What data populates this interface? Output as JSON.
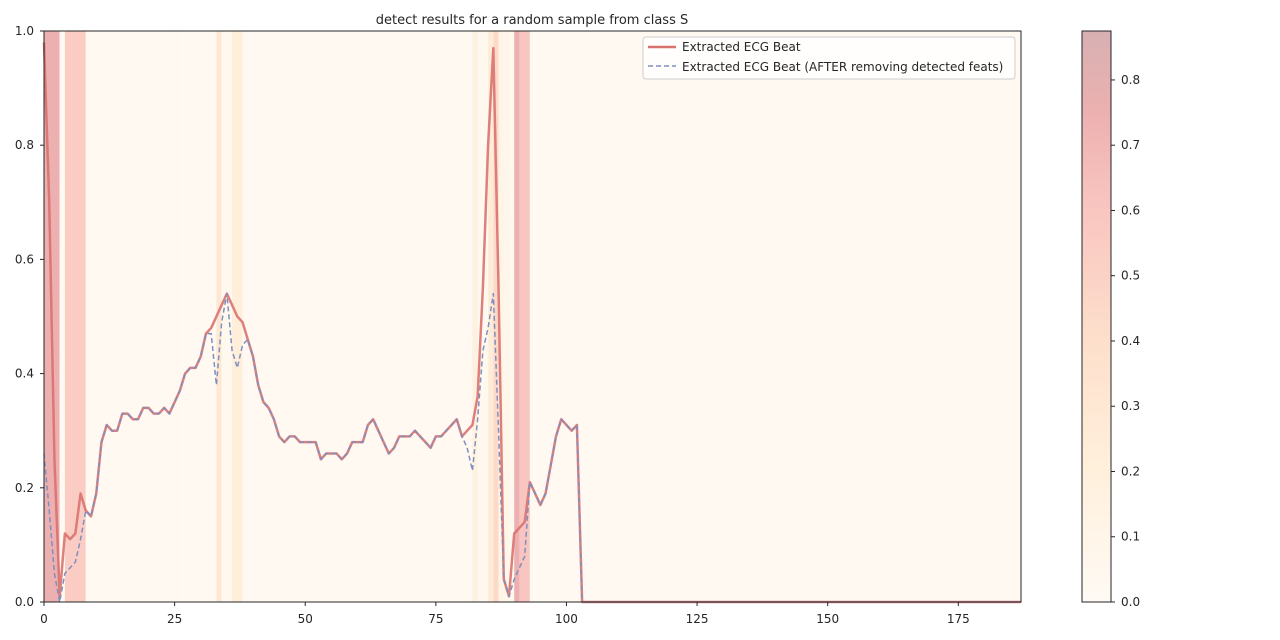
{
  "chart_data": {
    "type": "line",
    "title": "detect results for a random sample from class S",
    "xlabel": "",
    "ylabel": "",
    "xlim": [
      0,
      187
    ],
    "ylim": [
      0,
      1
    ],
    "xticks": [
      0,
      25,
      50,
      75,
      100,
      125,
      150,
      175
    ],
    "yticks": [
      0.0,
      0.2,
      0.4,
      0.6,
      0.8,
      1.0
    ],
    "grid": false,
    "legend_position": "top-right",
    "colors": {
      "beat": "#d9726f",
      "after": "#7f8fbf",
      "frame": "#262626"
    },
    "series": [
      {
        "name": "Extracted ECG Beat",
        "x": [
          0,
          1,
          2,
          3,
          4,
          5,
          6,
          7,
          8,
          9,
          10,
          11,
          12,
          13,
          14,
          15,
          16,
          17,
          18,
          19,
          20,
          21,
          22,
          23,
          24,
          25,
          26,
          27,
          28,
          29,
          30,
          31,
          32,
          33,
          34,
          35,
          36,
          37,
          38,
          39,
          40,
          41,
          42,
          43,
          44,
          45,
          46,
          47,
          48,
          49,
          50,
          51,
          52,
          53,
          54,
          55,
          56,
          57,
          58,
          59,
          60,
          61,
          62,
          63,
          64,
          65,
          66,
          67,
          68,
          69,
          70,
          71,
          72,
          73,
          74,
          75,
          76,
          77,
          78,
          79,
          80,
          81,
          82,
          83,
          84,
          85,
          86,
          87,
          88,
          89,
          90,
          91,
          92,
          93,
          94,
          95,
          96,
          97,
          98,
          99,
          100,
          101,
          102,
          103,
          187
        ],
        "y": [
          0.98,
          0.7,
          0.25,
          0.01,
          0.12,
          0.11,
          0.12,
          0.19,
          0.16,
          0.15,
          0.19,
          0.28,
          0.31,
          0.3,
          0.3,
          0.33,
          0.33,
          0.32,
          0.32,
          0.34,
          0.34,
          0.33,
          0.33,
          0.34,
          0.33,
          0.35,
          0.37,
          0.4,
          0.41,
          0.41,
          0.43,
          0.47,
          0.48,
          0.5,
          0.52,
          0.54,
          0.52,
          0.5,
          0.49,
          0.46,
          0.43,
          0.38,
          0.35,
          0.34,
          0.32,
          0.29,
          0.28,
          0.29,
          0.29,
          0.28,
          0.28,
          0.28,
          0.28,
          0.25,
          0.26,
          0.26,
          0.26,
          0.25,
          0.26,
          0.28,
          0.28,
          0.28,
          0.31,
          0.32,
          0.3,
          0.28,
          0.26,
          0.27,
          0.29,
          0.29,
          0.29,
          0.3,
          0.29,
          0.28,
          0.27,
          0.29,
          0.29,
          0.3,
          0.31,
          0.32,
          0.29,
          0.3,
          0.31,
          0.36,
          0.55,
          0.8,
          0.97,
          0.55,
          0.04,
          0.01,
          0.12,
          0.13,
          0.14,
          0.21,
          0.19,
          0.17,
          0.19,
          0.24,
          0.29,
          0.32,
          0.31,
          0.3,
          0.31,
          0.0,
          0.0
        ]
      },
      {
        "name": "Extracted ECG Beat (AFTER removing detected feats)",
        "x": [
          0,
          1,
          2,
          3,
          4,
          5,
          6,
          7,
          8,
          9,
          10,
          11,
          12,
          13,
          14,
          15,
          16,
          17,
          18,
          19,
          20,
          21,
          22,
          23,
          24,
          25,
          26,
          27,
          28,
          29,
          30,
          31,
          32,
          33,
          34,
          35,
          36,
          37,
          38,
          39,
          40,
          41,
          42,
          43,
          44,
          45,
          46,
          47,
          48,
          49,
          50,
          51,
          52,
          53,
          54,
          55,
          56,
          57,
          58,
          59,
          60,
          61,
          62,
          63,
          64,
          65,
          66,
          67,
          68,
          69,
          70,
          71,
          72,
          73,
          74,
          75,
          76,
          77,
          78,
          79,
          80,
          81,
          82,
          83,
          84,
          85,
          86,
          87,
          88,
          89,
          90,
          91,
          92,
          93,
          94,
          95,
          96,
          97,
          98,
          99,
          100,
          101,
          102,
          103,
          187
        ],
        "y": [
          0.26,
          0.16,
          0.05,
          0.0,
          0.05,
          0.06,
          0.07,
          0.11,
          0.16,
          0.15,
          0.19,
          0.28,
          0.31,
          0.3,
          0.3,
          0.33,
          0.33,
          0.32,
          0.32,
          0.34,
          0.34,
          0.33,
          0.33,
          0.34,
          0.33,
          0.35,
          0.37,
          0.4,
          0.41,
          0.41,
          0.43,
          0.47,
          0.47,
          0.38,
          0.49,
          0.54,
          0.44,
          0.41,
          0.45,
          0.46,
          0.43,
          0.38,
          0.35,
          0.34,
          0.32,
          0.29,
          0.28,
          0.29,
          0.29,
          0.28,
          0.28,
          0.28,
          0.28,
          0.25,
          0.26,
          0.26,
          0.26,
          0.25,
          0.26,
          0.28,
          0.28,
          0.28,
          0.31,
          0.32,
          0.3,
          0.28,
          0.26,
          0.27,
          0.29,
          0.29,
          0.29,
          0.3,
          0.29,
          0.28,
          0.27,
          0.29,
          0.29,
          0.3,
          0.31,
          0.32,
          0.29,
          0.27,
          0.23,
          0.32,
          0.44,
          0.48,
          0.54,
          0.3,
          0.04,
          0.01,
          0.04,
          0.06,
          0.08,
          0.21,
          0.19,
          0.17,
          0.19,
          0.24,
          0.29,
          0.32,
          0.31,
          0.3,
          0.31,
          0.0,
          0.0
        ]
      }
    ],
    "heat_spans": [
      {
        "x0": 0,
        "x1": 3,
        "value": 0.75
      },
      {
        "x0": 3,
        "x1": 4,
        "value": 0.02
      },
      {
        "x0": 4,
        "x1": 8,
        "value": 0.55
      },
      {
        "x0": 8,
        "x1": 25,
        "value": 0.03
      },
      {
        "x0": 25,
        "x1": 26,
        "value": 0.05
      },
      {
        "x0": 26,
        "x1": 33,
        "value": 0.03
      },
      {
        "x0": 33,
        "x1": 34,
        "value": 0.3
      },
      {
        "x0": 34,
        "x1": 36,
        "value": 0.05
      },
      {
        "x0": 36,
        "x1": 38,
        "value": 0.22
      },
      {
        "x0": 38,
        "x1": 82,
        "value": 0.03
      },
      {
        "x0": 82,
        "x1": 83,
        "value": 0.18
      },
      {
        "x0": 83,
        "x1": 85,
        "value": 0.05
      },
      {
        "x0": 85,
        "x1": 86,
        "value": 0.25
      },
      {
        "x0": 86,
        "x1": 87,
        "value": 0.45
      },
      {
        "x0": 87,
        "x1": 88,
        "value": 0.12
      },
      {
        "x0": 88,
        "x1": 89,
        "value": 0.08
      },
      {
        "x0": 89,
        "x1": 90,
        "value": 0.05
      },
      {
        "x0": 90,
        "x1": 91,
        "value": 0.75
      },
      {
        "x0": 91,
        "x1": 93,
        "value": 0.6
      },
      {
        "x0": 93,
        "x1": 187,
        "value": 0.03
      }
    ],
    "colorbar": {
      "range": [
        0,
        0.875
      ],
      "ticks": [
        0.0,
        0.1,
        0.2,
        0.3,
        0.4,
        0.5,
        0.6,
        0.7,
        0.8
      ]
    }
  }
}
